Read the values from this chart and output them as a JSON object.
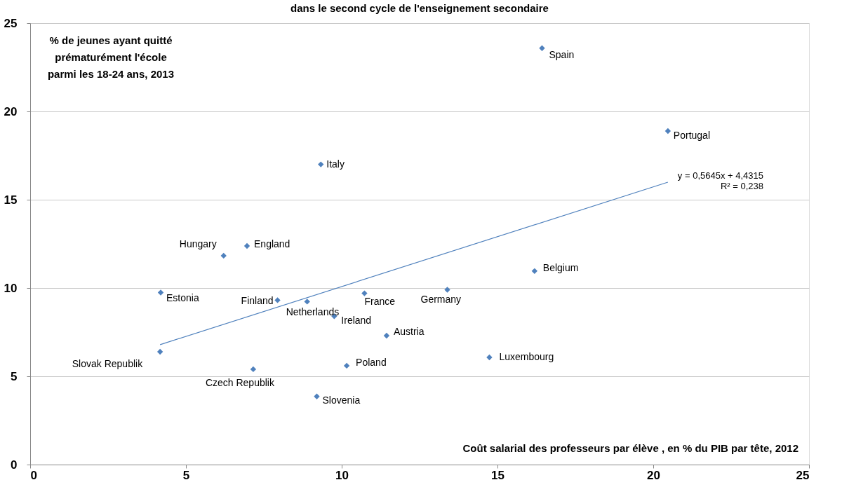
{
  "chart_data": {
    "type": "scatter",
    "title": "dans le second cycle de l'enseignement secondaire",
    "xlabel": "Coût salarial des professeurs par élève , en % du PIB par tête, 2012",
    "ylabel": "% de jeunes ayant quitté\nprématurément l'école\nparmi les 18-24 ans, 2013",
    "series": [
      {
        "marker": "diamond",
        "color": "#4f81bd",
        "x": [
          16.43,
          20.47,
          9.33,
          6.21,
          6.96,
          16.19,
          4.19,
          7.94,
          8.89,
          10.73,
          13.39,
          9.76,
          11.44,
          4.17,
          14.74,
          7.16,
          10.16,
          9.2
        ],
        "values": [
          23.58,
          18.89,
          17.0,
          11.83,
          12.38,
          10.96,
          9.74,
          9.31,
          9.23,
          9.7,
          9.9,
          8.4,
          7.3,
          6.39,
          6.07,
          5.4,
          5.6,
          3.86
        ]
      },
      {
        "type": "line",
        "marker": "none",
        "color": "#4f81bd",
        "x": [
          4.17,
          20.47
        ],
        "values": [
          6.79,
          15.99
        ]
      }
    ],
    "annotations": [
      {
        "text": "Spain",
        "x": 16.43,
        "y": 23.58
      },
      {
        "text": "Portugal",
        "x": 20.47,
        "y": 18.89
      },
      {
        "text": "Italy",
        "x": 9.33,
        "y": 17.0
      },
      {
        "text": "Hungary",
        "x": 6.21,
        "y": 11.83
      },
      {
        "text": "England",
        "x": 6.96,
        "y": 12.38
      },
      {
        "text": "Belgium",
        "x": 16.19,
        "y": 10.96
      },
      {
        "text": "Estonia",
        "x": 4.19,
        "y": 9.74
      },
      {
        "text": "Finland",
        "x": 7.94,
        "y": 9.31
      },
      {
        "text": "Netherlands",
        "x": 8.89,
        "y": 9.23
      },
      {
        "text": "France",
        "x": 10.73,
        "y": 9.7
      },
      {
        "text": "Germany",
        "x": 13.39,
        "y": 9.9
      },
      {
        "text": "Ireland",
        "x": 9.76,
        "y": 8.4
      },
      {
        "text": "Austria",
        "x": 11.44,
        "y": 7.3
      },
      {
        "text": "Slovak Republik",
        "x": 4.17,
        "y": 6.39
      },
      {
        "text": "Luxembourg",
        "x": 14.74,
        "y": 6.07
      },
      {
        "text": "Czech Republik",
        "x": 7.16,
        "y": 5.4
      },
      {
        "text": "Poland",
        "x": 10.16,
        "y": 5.6
      },
      {
        "text": "Slovenia",
        "x": 9.2,
        "y": 3.86
      },
      "y = 0,5645x + 4,4315\nR² = 0,238"
    ],
    "xlim": [
      0,
      25
    ],
    "xticks": [
      0,
      5,
      10,
      15,
      20,
      25
    ],
    "ylim": [
      0,
      25
    ],
    "yticks": [
      0,
      5,
      10,
      15,
      20,
      25
    ],
    "grid": "y"
  }
}
